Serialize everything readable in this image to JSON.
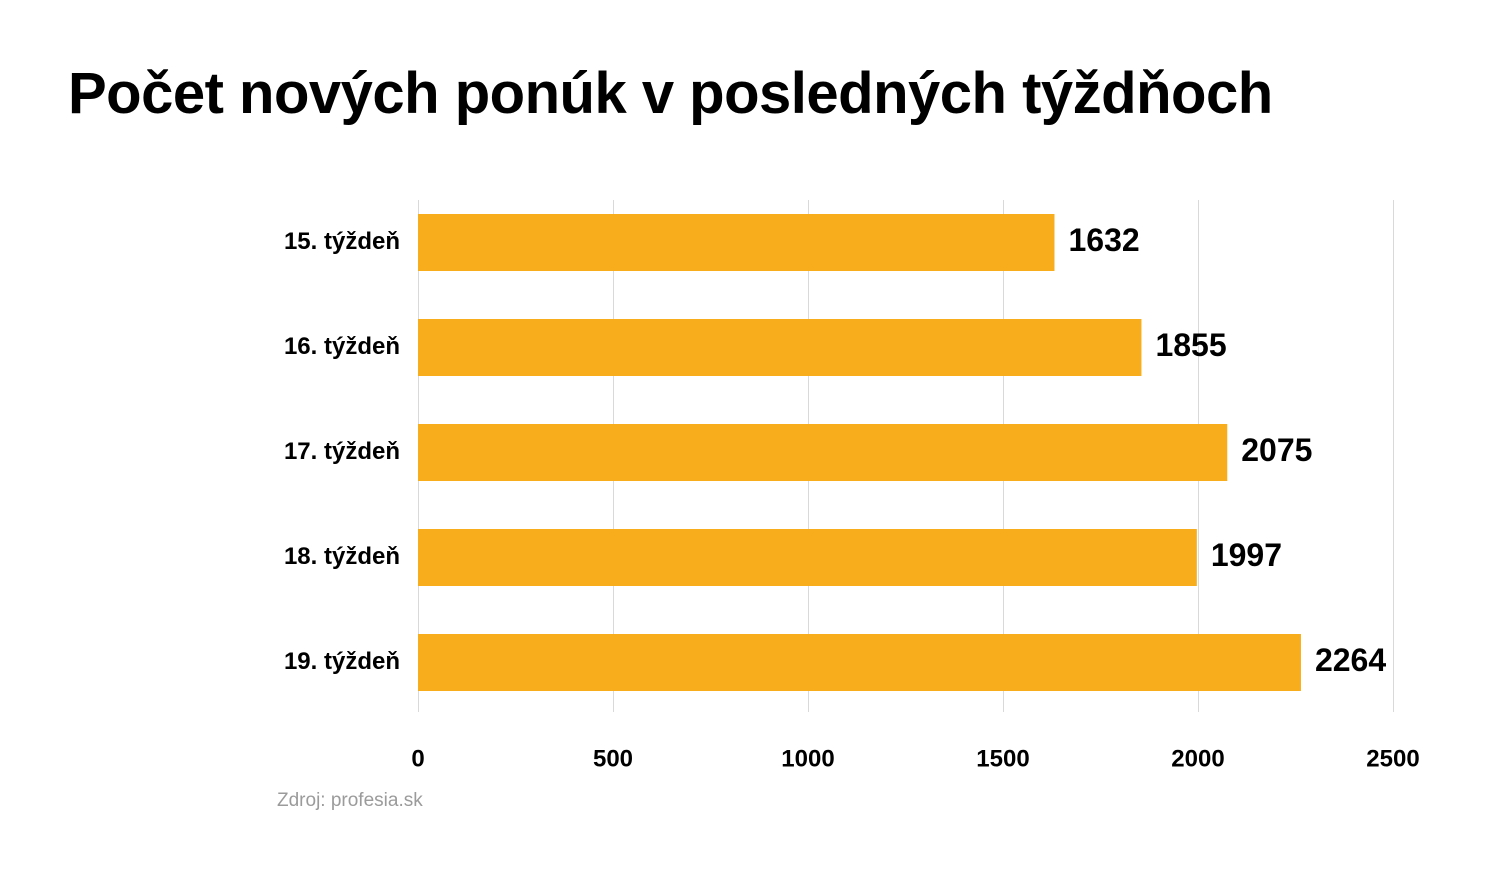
{
  "chart_data": {
    "type": "bar",
    "orientation": "horizontal",
    "title": "Počet nových ponúk v posledných týždňoch",
    "categories": [
      "15. týždeň",
      "16. týždeň",
      "17. týždeň",
      "18. týždeň",
      "19. týždeň"
    ],
    "values": [
      1632,
      1855,
      2075,
      1997,
      2264
    ],
    "value_labels": [
      "1632",
      "1855",
      "2075",
      "1997",
      "2264"
    ],
    "xlim": [
      0,
      2500
    ],
    "x_ticks": [
      0,
      500,
      1000,
      1500,
      2000,
      2500
    ],
    "x_tick_labels": [
      "0",
      "500",
      "1000",
      "1500",
      "2000",
      "2500"
    ],
    "grid": true,
    "legend": "none",
    "bar_color": "#f8ad1d",
    "grid_color": "#d9d9d9",
    "source": "Zdroj: profesia.sk"
  }
}
